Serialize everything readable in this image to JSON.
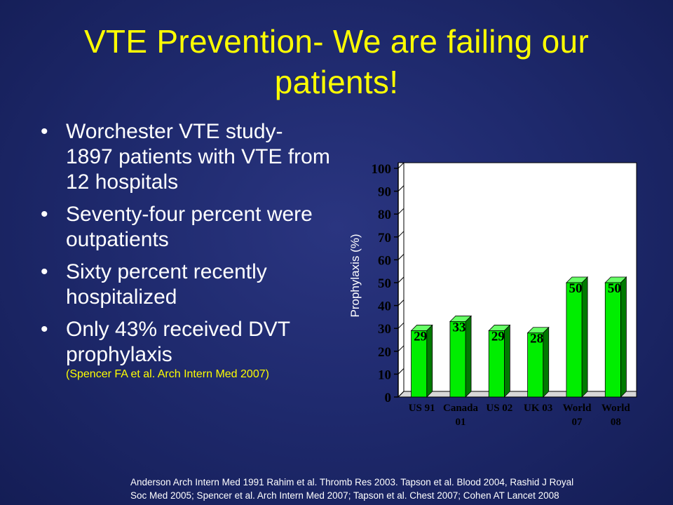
{
  "slide": {
    "title_line1": "VTE Prevention- We are failing our",
    "title_line2": "patients!",
    "bullets": [
      {
        "text": "Worchester VTE study- 1897 patients with VTE from 12 hospitals"
      },
      {
        "text": "Seventy-four percent were outpatients"
      },
      {
        "text": "Sixty percent recently hospitalized"
      },
      {
        "text": "Only 43% received DVT prophylaxis",
        "citation": "(Spencer FA et al. Arch Intern Med 2007)"
      }
    ],
    "bullet_glyph": "•",
    "footnote_line1": "Anderson Arch Intern Med 1991 Rahim et al. Thromb Res 2003. Tapson et al. Blood 2004, Rashid J Royal",
    "footnote_line2": "Soc Med 2005; Spencer et al. Arch Intern Med 2007; Tapson et al. Chest 2007; Cohen AT Lancet 2008"
  },
  "colors": {
    "title": "#ffff00",
    "bar_front": "#00ee00",
    "bar_side": "#007a00",
    "bar_top": "#66ff66",
    "plot_bg": "#ffffff",
    "axis_text": "#000000"
  },
  "chart_data": {
    "type": "bar",
    "title": "",
    "xlabel": "",
    "ylabel": "Prophylaxis (%)",
    "ylim": [
      0,
      100
    ],
    "yticks": [
      0,
      10,
      20,
      30,
      40,
      50,
      60,
      70,
      80,
      90,
      100
    ],
    "grid": false,
    "style": "3d",
    "categories": [
      [
        "US 91"
      ],
      [
        "Canada",
        "01"
      ],
      [
        "US 02"
      ],
      [
        "UK 03"
      ],
      [
        "World",
        "07"
      ],
      [
        "World",
        "08"
      ]
    ],
    "values": [
      29,
      33,
      29,
      28,
      50,
      50
    ]
  }
}
